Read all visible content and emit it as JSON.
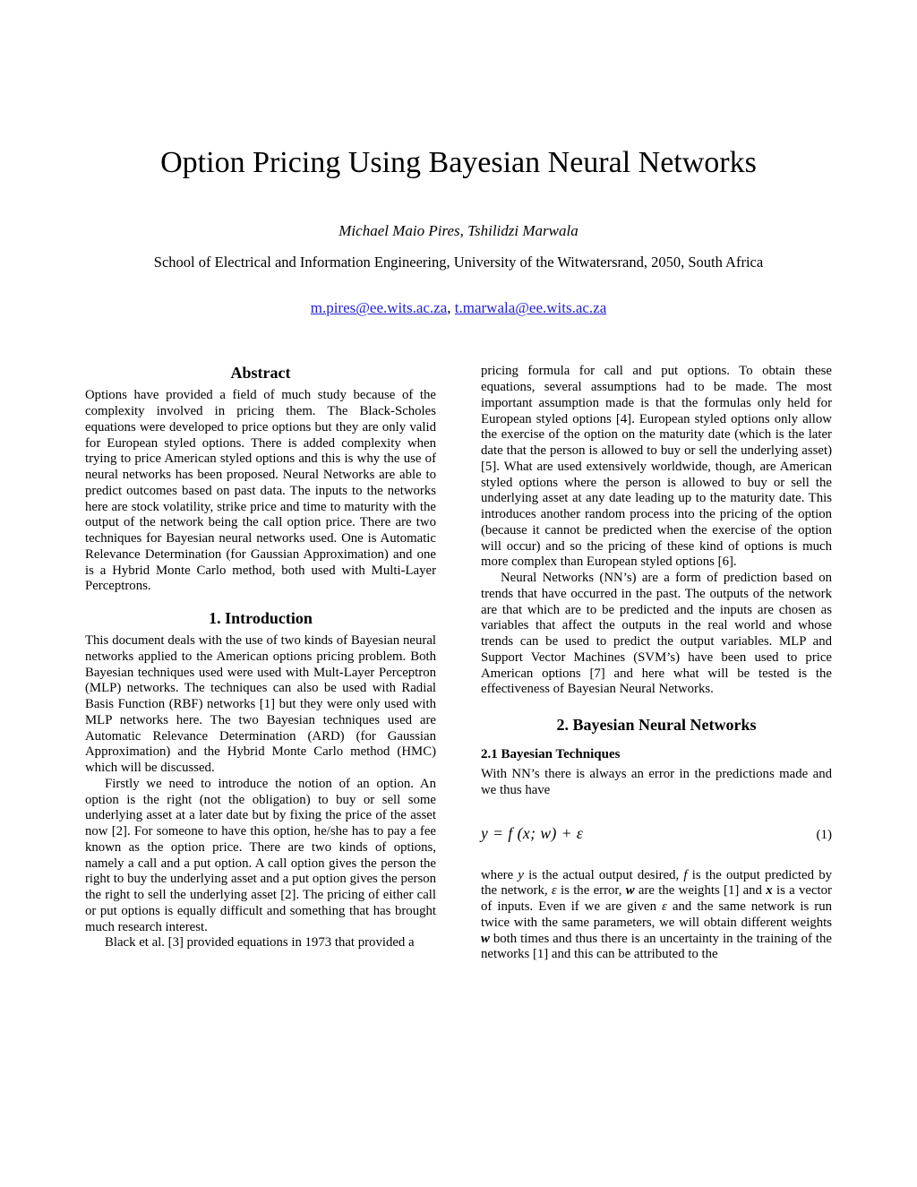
{
  "header": {
    "title": "Option Pricing Using Bayesian Neural Networks",
    "authors": "Michael Maio Pires, Tshilidzi Marwala",
    "affiliation": "School of Electrical and Information Engineering, University of the Witwatersrand, 2050, South Africa",
    "email1": "m.pires@ee.wits.ac.za",
    "email_separator": ", ",
    "email2": "t.marwala@ee.wits.ac.za",
    "link_color": "#2222cc",
    "text_color": "#000000",
    "background_color": "#ffffff"
  },
  "left_column": {
    "abstract_heading": "Abstract",
    "abstract_body": "Options have provided a field of much study because of the complexity involved in pricing them. The Black-Scholes equations were developed to price options but they are only valid for European styled options. There is added complexity when trying to price American styled options and this is why the use of neural networks has been proposed. Neural Networks are able to predict outcomes based on past data. The inputs to the networks here are stock volatility, strike price and time to maturity with the output of the network being the call option price. There are two techniques for Bayesian neural networks used. One is Automatic Relevance Determination (for Gaussian Approximation) and one is a Hybrid Monte Carlo method, both used with Multi-Layer Perceptrons.",
    "intro_heading": "1. Introduction",
    "intro_p1": "This document deals with the use of two kinds of Bayesian neural networks applied to the American options pricing problem. Both Bayesian techniques used were used with Mult-Layer Perceptron (MLP) networks. The techniques can also be used with Radial Basis Function (RBF) networks [1] but they were only used with MLP networks here. The two Bayesian techniques used are Automatic Relevance Determination (ARD) (for Gaussian Approximation) and the Hybrid Monte Carlo method (HMC) which will be discussed.",
    "intro_p2": "Firstly we need to introduce the notion of an option. An option is the right (not the obligation) to buy or sell some underlying asset at a later date but by fixing the price of the asset now [2]. For someone to have this option, he/she has to pay a fee known as the option price. There are two kinds of options, namely a call and a put option. A call option gives the person the right to buy the underlying asset and a put option gives the person the right to sell the underlying asset [2]. The pricing of either call or put options is equally difficult and something that has brought much research interest.",
    "intro_p3": "Black et al. [3] provided equations in 1973 that provided a"
  },
  "right_column": {
    "cont_p1": "pricing formula for call and put options. To obtain these equations, several assumptions had to be made. The most important assumption made is that the formulas only held for European styled options [4]. European styled options only allow the exercise of the option on the maturity date (which is the later date that the person is allowed to buy or sell the underlying asset) [5]. What are used extensively worldwide, though, are American styled options where the person is allowed to buy or sell the underlying asset at any date leading up to the maturity date. This introduces another random process into the pricing of the option (because it cannot be predicted when the exercise of the option will occur) and so the pricing of these kind of options is much more complex than European styled options [6].",
    "cont_p2": "Neural Networks (NN’s) are a form of prediction based on trends that have occurred in the past. The outputs of the network are that which are to be predicted and the inputs are chosen as variables that affect the outputs in the real world and whose trends can be used to predict the output variables. MLP and Support Vector Machines (SVM’s) have been used to price American options [7] and here what will be tested is the effectiveness of Bayesian Neural Networks.",
    "section2_heading": "2. Bayesian Neural Networks",
    "section21_heading": "2.1 Bayesian Techniques",
    "with_nn_para": "With NN’s there is always an error in the predictions made and we thus have",
    "equation": {
      "expression": "y = f (x; w) + ε",
      "number": "(1)"
    },
    "where_para_segments": [
      {
        "t": "where "
      },
      {
        "t": "y",
        "s": "i"
      },
      {
        "t": " is the actual output desired, "
      },
      {
        "t": "f",
        "s": "i"
      },
      {
        "t": " is the output predicted by the network, "
      },
      {
        "t": "ε",
        "s": "i"
      },
      {
        "t": " is the error, "
      },
      {
        "t": "w",
        "s": "bi"
      },
      {
        "t": " are the weights [1] and "
      },
      {
        "t": "x",
        "s": "bi"
      },
      {
        "t": " is a vector of inputs. Even if we are given "
      },
      {
        "t": "ε",
        "s": "i"
      },
      {
        "t": " and the same network is run twice with the same parameters, we will obtain different weights "
      },
      {
        "t": "w",
        "s": "bi"
      },
      {
        "t": " both times and thus there is an uncertainty in the training of the networks [1] and this can be attributed to the"
      }
    ]
  }
}
